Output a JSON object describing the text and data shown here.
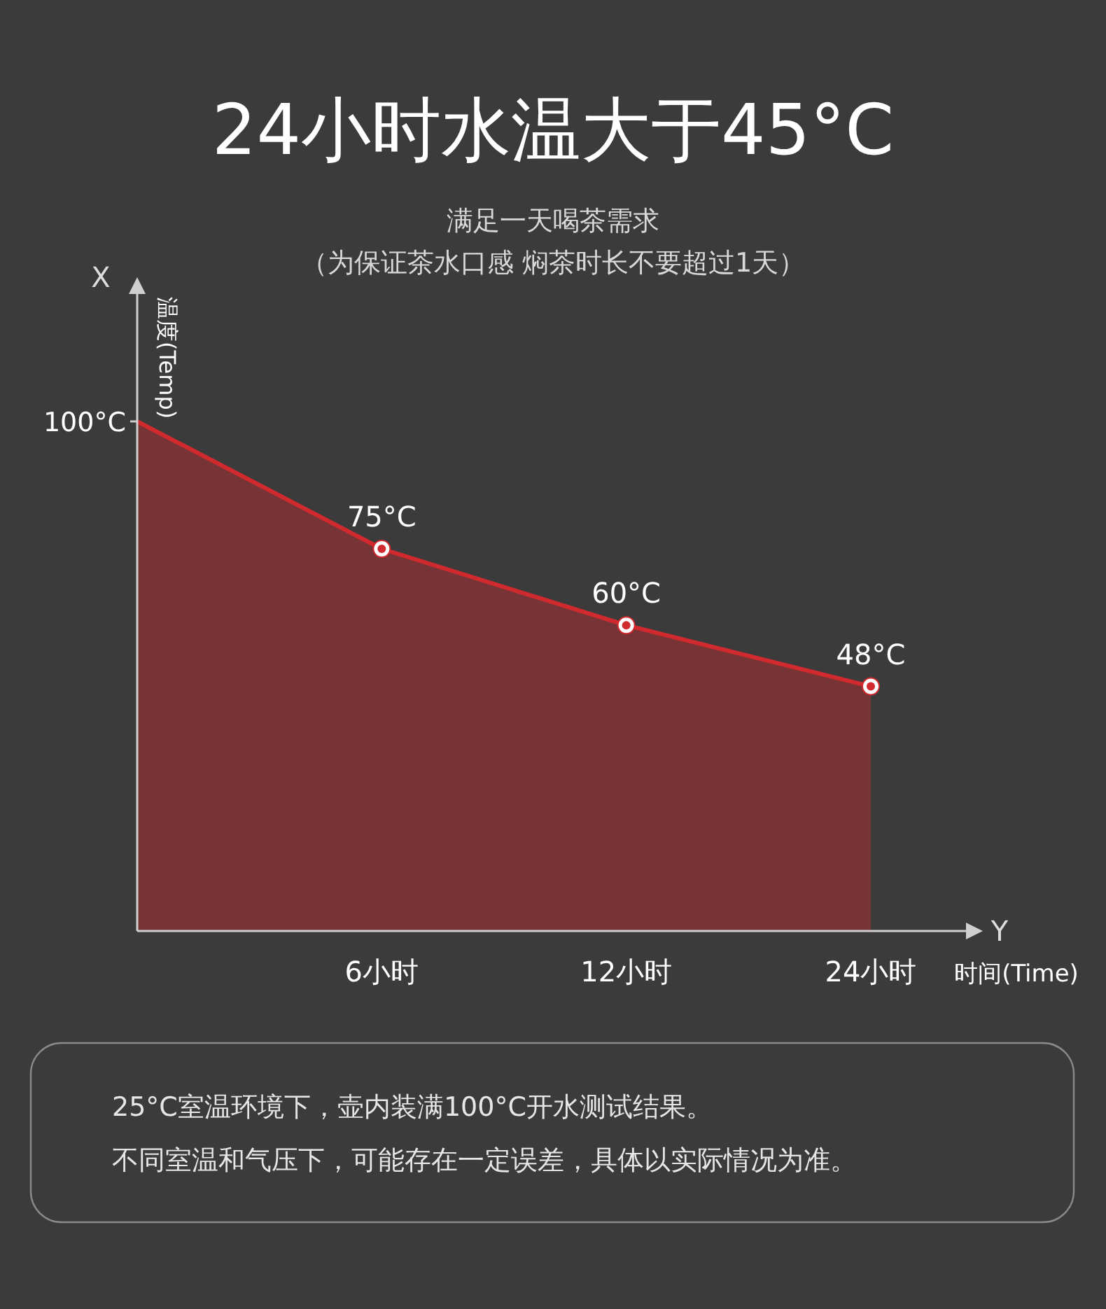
{
  "chart_data": {
    "type": "area",
    "title": "24小时水温大于45°C",
    "subtitle": "满足一天喝茶需求",
    "ylabel": "温度(Temp)",
    "xlabel": "时间(Time)",
    "annotations": [
      "（为保证茶水口感 焖茶时长不要超过1天）",
      "X",
      "Y",
      "25°C室温环境下，壶内装满100°C开水测试结果。",
      "不同室温和气压下，可能存在一定误差，具体以实际情况为准。"
    ],
    "categories": [
      null,
      "6小时",
      "12小时",
      "24小时"
    ],
    "values": [
      100,
      75,
      60,
      48
    ],
    "value_labels": [
      null,
      "75°C",
      "60°C",
      "48°C"
    ],
    "color": "#d02a2e",
    "marker": "circle",
    "ylim": [
      0,
      125
    ],
    "yticks": [
      {
        "value": 100,
        "label": "100°C"
      }
    ],
    "grid": false
  }
}
